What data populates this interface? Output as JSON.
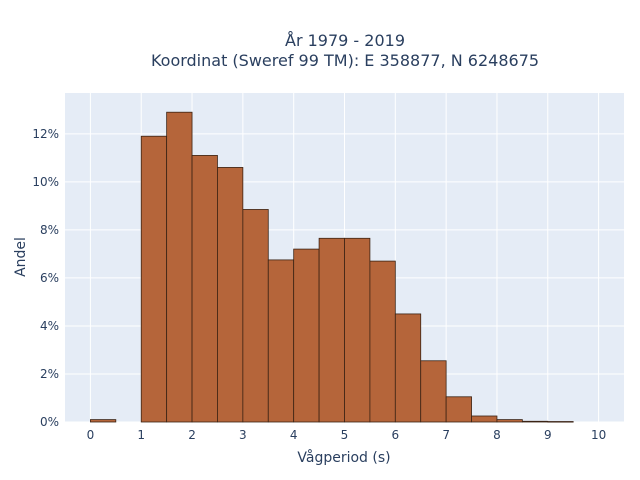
{
  "chart_data": {
    "type": "bar",
    "title": "År 1979 - 2019",
    "subtitle": "Koordinat (Sweref 99 TM): E 358877, N 6248675",
    "xlabel": "Vågperiod (s)",
    "ylabel": "Andel",
    "bin_width": 0.5,
    "bins": [
      {
        "start": 0.0,
        "value": 0.1
      },
      {
        "start": 0.5,
        "value": 0.0
      },
      {
        "start": 1.0,
        "value": 11.9
      },
      {
        "start": 1.5,
        "value": 12.9
      },
      {
        "start": 2.0,
        "value": 11.1
      },
      {
        "start": 2.5,
        "value": 10.6
      },
      {
        "start": 3.0,
        "value": 8.85
      },
      {
        "start": 3.5,
        "value": 6.75
      },
      {
        "start": 4.0,
        "value": 7.2
      },
      {
        "start": 4.5,
        "value": 7.65
      },
      {
        "start": 5.0,
        "value": 7.65
      },
      {
        "start": 5.5,
        "value": 6.7
      },
      {
        "start": 6.0,
        "value": 4.5
      },
      {
        "start": 6.5,
        "value": 2.55
      },
      {
        "start": 7.0,
        "value": 1.05
      },
      {
        "start": 7.5,
        "value": 0.25
      },
      {
        "start": 8.0,
        "value": 0.1
      },
      {
        "start": 8.5,
        "value": 0.03
      },
      {
        "start": 9.0,
        "value": 0.02
      }
    ],
    "xlim": [
      -0.5,
      10.5
    ],
    "ylim": [
      0,
      13.7
    ],
    "xticks": [
      0,
      1,
      2,
      3,
      4,
      5,
      6,
      7,
      8,
      9,
      10
    ],
    "xtick_labels": [
      "0",
      "1",
      "2",
      "3",
      "4",
      "5",
      "6",
      "7",
      "8",
      "9",
      "10"
    ],
    "yticks": [
      0,
      2,
      4,
      6,
      8,
      10,
      12
    ],
    "ytick_labels": [
      "0%",
      "2%",
      "4%",
      "6%",
      "8%",
      "10%",
      "12%"
    ],
    "grid": true,
    "colors": {
      "bar_fill": "#b5653a",
      "bar_stroke": "#3b2314",
      "plot_bg": "#e5ecf6",
      "grid": "#ffffff"
    }
  }
}
